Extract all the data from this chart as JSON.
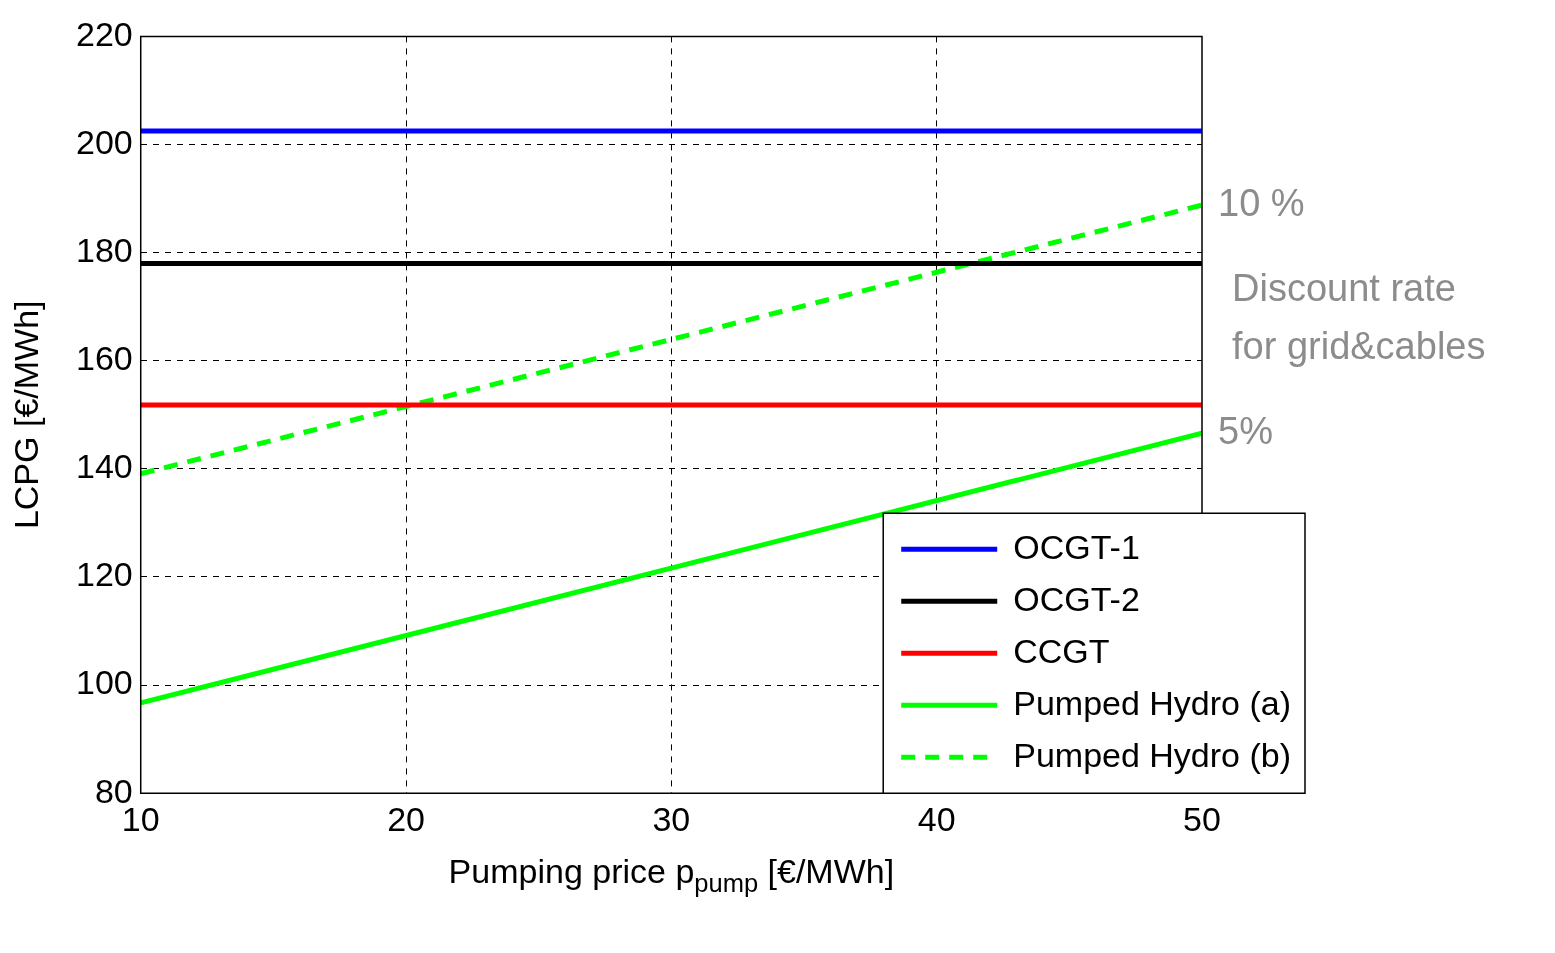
{
  "chart_data": {
    "type": "line",
    "xlabel": "Pumping price p$_{pump}$ [€/MWh]",
    "ylabel": "LCPG [€/MWh]",
    "x": [
      10,
      50
    ],
    "series": [
      {
        "name": "OCGT-1",
        "color": "#0000ff",
        "values": [
          202.5,
          202.5
        ]
      },
      {
        "name": "OCGT-2",
        "color": "#000000",
        "values": [
          178,
          178
        ]
      },
      {
        "name": "CCGT",
        "color": "#ff0000",
        "values": [
          151.8,
          151.8
        ]
      },
      {
        "name": "Pumped Hydro (a)",
        "color": "#00ff00",
        "values": [
          96.7,
          146.6
        ]
      },
      {
        "name": "Pumped Hydro (b)",
        "color": "#00ff00",
        "values": [
          139.1,
          188.8
        ],
        "line_style": "dashed"
      }
    ],
    "xlim": [
      10,
      50
    ],
    "xticks": [
      10,
      20,
      30,
      40,
      50
    ],
    "ylim": [
      80,
      220
    ],
    "yticks": [
      80,
      100,
      120,
      140,
      160,
      180,
      200,
      220
    ],
    "grid": true,
    "legend": "bottom right",
    "marker": "none",
    "line_style": "solid",
    "annotations": [
      {
        "text": "10 %",
        "x": 50,
        "y": 188.8
      },
      "Discount rate\nfor grid&cables",
      {
        "text": "5%",
        "x": 50,
        "y": 146.6
      }
    ]
  }
}
